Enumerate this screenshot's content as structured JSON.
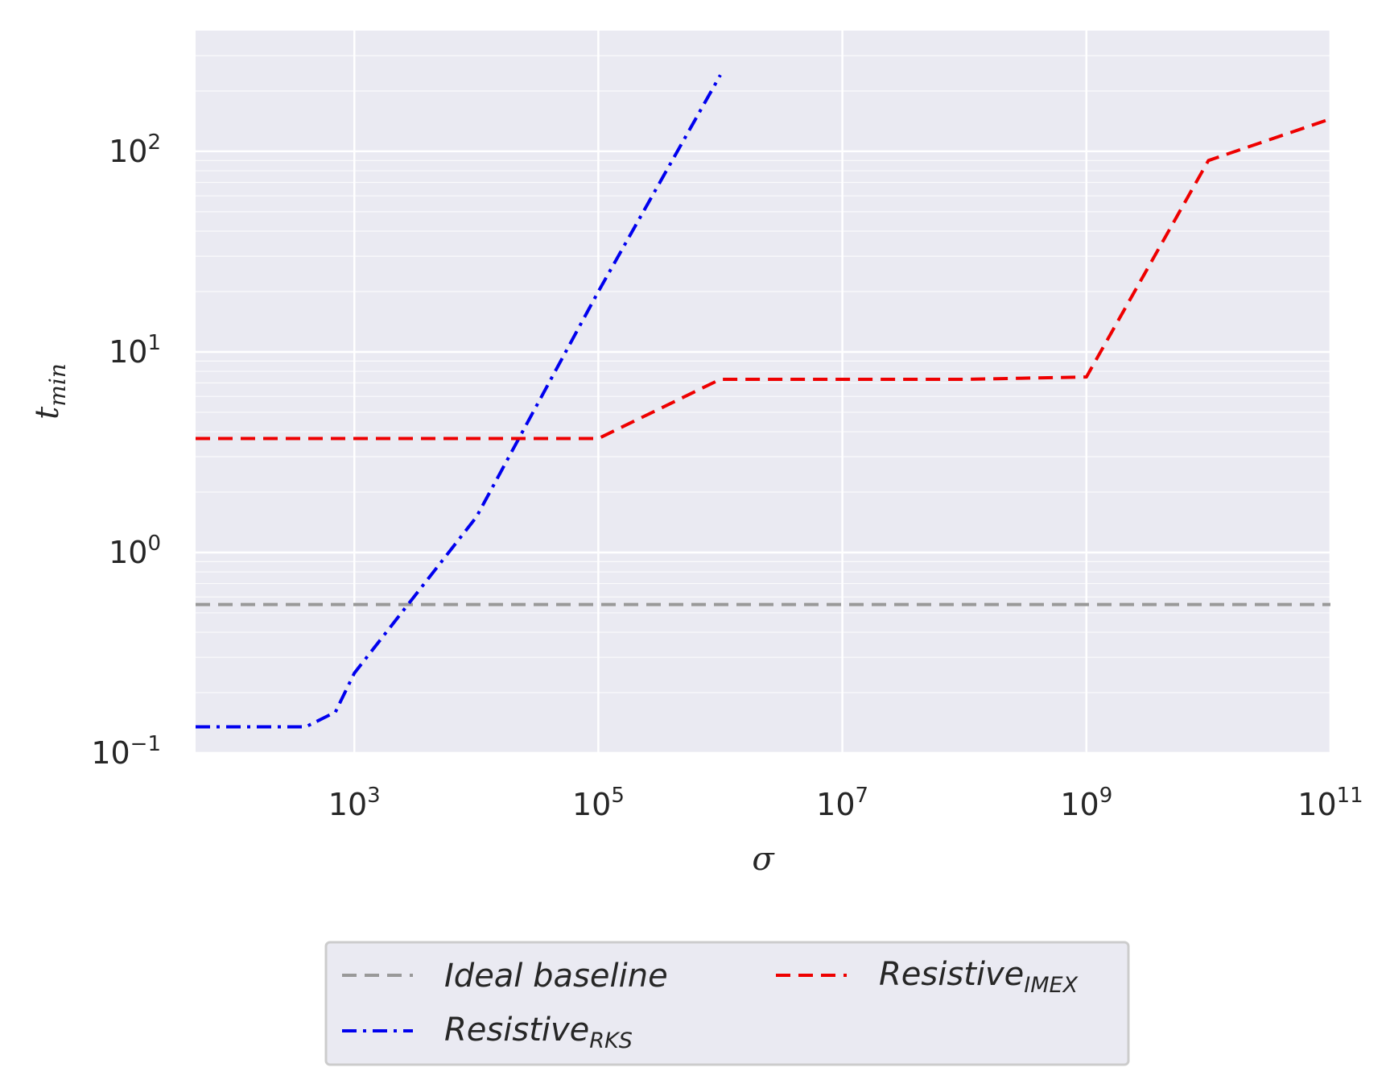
{
  "chart_data": {
    "type": "line",
    "xlabel": {
      "base": "σ",
      "sub": ""
    },
    "ylabel": {
      "base": "t",
      "sub": "min"
    },
    "x_scale": "log",
    "y_scale": "log",
    "xlim": [
      50,
      100000000000
    ],
    "ylim": [
      0.1,
      400
    ],
    "grid": true,
    "legend_position": "bottom-center",
    "colors": {
      "plot_bg": "#eaeaf2",
      "grid": "#ffffff",
      "text": "#262626"
    },
    "x_ticks": [
      {
        "value": 1000,
        "base": "10",
        "exp": "3"
      },
      {
        "value": 100000,
        "base": "10",
        "exp": "5"
      },
      {
        "value": 10000000,
        "base": "10",
        "exp": "7"
      },
      {
        "value": 1000000000,
        "base": "10",
        "exp": "9"
      },
      {
        "value": 100000000000,
        "base": "10",
        "exp": "11"
      }
    ],
    "y_ticks": [
      {
        "value": 0.1,
        "base": "10",
        "exp": "−1"
      },
      {
        "value": 1,
        "base": "10",
        "exp": "0"
      },
      {
        "value": 10,
        "base": "10",
        "exp": "1"
      },
      {
        "value": 100,
        "base": "10",
        "exp": "2"
      }
    ],
    "series": [
      {
        "name": "Ideal baseline",
        "name_sub": "",
        "color": "#999999",
        "dash": "dashed",
        "points": [
          [
            50,
            0.55
          ],
          [
            100000000000,
            0.55
          ]
        ]
      },
      {
        "name": "Resistive",
        "name_sub": "RKS",
        "color": "#0000ee",
        "dash": "dashdot",
        "points": [
          [
            50,
            0.135
          ],
          [
            100,
            0.135
          ],
          [
            400,
            0.135
          ],
          [
            700,
            0.16
          ],
          [
            1000,
            0.25
          ],
          [
            10000,
            1.5
          ],
          [
            100000,
            20
          ],
          [
            1000000,
            240
          ]
        ]
      },
      {
        "name": "Resistive",
        "name_sub": "IMEX",
        "color": "#ee0000",
        "dash": "dashed",
        "points": [
          [
            50,
            3.7
          ],
          [
            1000,
            3.7
          ],
          [
            100000,
            3.7
          ],
          [
            1000000,
            7.3
          ],
          [
            10000000,
            7.3
          ],
          [
            100000000,
            7.3
          ],
          [
            1000000000,
            7.5
          ],
          [
            10000000000,
            90
          ],
          [
            100000000000,
            145
          ]
        ]
      }
    ],
    "legend_order": [
      0,
      2,
      1
    ]
  }
}
